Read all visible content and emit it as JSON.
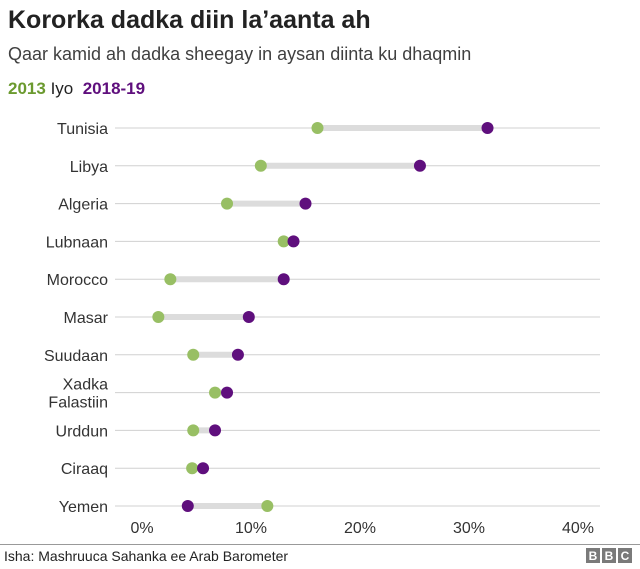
{
  "title": "Kororka dadka diin la’aanta ah",
  "subtitle": "Qaar kamid ah dadka sheegay in aysan diinta ku dhaqmin",
  "legend": {
    "a": "2013",
    "sep": "Iyo",
    "b": "2018-19"
  },
  "source": "Isha: Mashruuca Sahanka ee Arab Barometer",
  "logo": [
    "B",
    "B",
    "C"
  ],
  "colors": {
    "y2013": "#98bf64",
    "y2018": "#5f0f7d",
    "bar": "#dcdcdc",
    "grid": "#d0d0d0"
  },
  "chart_data": {
    "type": "dumbbell",
    "title": "Kororka dadka diin la’aanta ah",
    "xlim": [
      0,
      40
    ],
    "xticks": [
      "0%",
      "10%",
      "20%",
      "30%",
      "40%"
    ],
    "series": [
      {
        "name": "2013"
      },
      {
        "name": "2018-19"
      }
    ],
    "categories": [
      {
        "label": [
          "Tunisia"
        ],
        "v2013": 16.1,
        "v2018": 31.7
      },
      {
        "label": [
          "Libya"
        ],
        "v2013": 10.9,
        "v2018": 25.5
      },
      {
        "label": [
          "Algeria"
        ],
        "v2013": 7.8,
        "v2018": 15.0
      },
      {
        "label": [
          "Lubnaan"
        ],
        "v2013": 13.0,
        "v2018": 13.9
      },
      {
        "label": [
          "Morocco"
        ],
        "v2013": 2.6,
        "v2018": 13.0
      },
      {
        "label": [
          "Masar"
        ],
        "v2013": 1.5,
        "v2018": 9.8
      },
      {
        "label": [
          "Suudaan"
        ],
        "v2013": 4.7,
        "v2018": 8.8
      },
      {
        "label": [
          "Xadka",
          "Falastiin"
        ],
        "v2013": 6.7,
        "v2018": 7.8
      },
      {
        "label": [
          "Urddun"
        ],
        "v2013": 4.7,
        "v2018": 6.7
      },
      {
        "label": [
          "Ciraaq"
        ],
        "v2013": 4.6,
        "v2018": 5.6
      },
      {
        "label": [
          "Yemen"
        ],
        "v2013": 11.5,
        "v2018": 4.2
      }
    ]
  }
}
